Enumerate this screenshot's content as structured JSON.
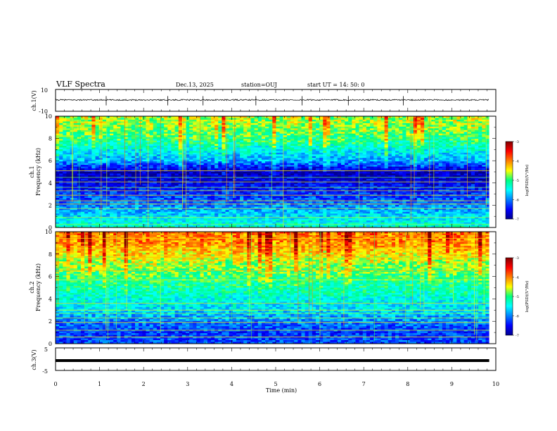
{
  "chart_data": {
    "type": "heatmap",
    "header": {
      "title": "VLF Spectra",
      "date": "Dec.13, 2025",
      "station": "station=OUJ",
      "start": "start UT =  14: 50: 0"
    },
    "time_axis": {
      "label": "Time (min)",
      "range": [
        0,
        10
      ],
      "ticks": [
        "0",
        "1",
        "2",
        "3",
        "4",
        "5",
        "6",
        "7",
        "8",
        "9",
        "10"
      ],
      "data_extent_min": 9.85
    },
    "ch1_waveform": {
      "ylabel": "ch.1(V)",
      "yticks": [
        "10",
        "-10"
      ],
      "yrange": [
        -10,
        10
      ],
      "baseline": 0.4,
      "noise_amplitude": 0.6,
      "spike_times_min": [
        1.15,
        2.55,
        3.35,
        4.55,
        5.6,
        6.65,
        7.9
      ]
    },
    "ch1_spectrogram": {
      "ylabel_channel": "ch.1",
      "ylabel": "Frequency (kHz)",
      "yticks": [
        "0",
        "2",
        "4",
        "6",
        "8",
        "10"
      ],
      "yrange_khz": [
        0,
        10
      ],
      "colorbar": {
        "label": "log(PSD)(V²/Hz)",
        "ticks": [
          "-3",
          "-4",
          "-5",
          "-6",
          "-7"
        ],
        "range": [
          -7,
          -3
        ]
      },
      "levels_by_khz": [
        -5.3,
        -5.6,
        -6.0,
        -6.3,
        -6.6,
        -6.8,
        -5.9,
        -5.5,
        -5.1,
        -4.9,
        -4.8
      ],
      "line_khz": [
        0.3,
        0.9,
        1.7,
        2.1,
        2.4,
        2.9,
        3.3,
        3.6,
        4.1,
        4.5,
        5.1
      ]
    },
    "ch2_spectrogram": {
      "ylabel_channel": "ch.2",
      "ylabel": "Frequency (kHz)",
      "yticks": [
        "0",
        "2",
        "4",
        "6",
        "8",
        "10"
      ],
      "yrange_khz": [
        0,
        10
      ],
      "colorbar": {
        "label": "log(PSD)(V²/Hz)",
        "ticks": [
          "-3",
          "-4",
          "-5",
          "-6",
          "-7"
        ],
        "range": [
          -7,
          -3
        ]
      },
      "levels_by_khz": [
        -6.2,
        -6.3,
        -6.0,
        -5.6,
        -5.4,
        -5.2,
        -5.0,
        -4.8,
        -4.5,
        -4.2,
        -4.1
      ],
      "line_khz": [
        0.6,
        1.2,
        1.9,
        2.3,
        2.7,
        3.0,
        3.6,
        5.7,
        6.5,
        7.7,
        8.5,
        9.4
      ]
    },
    "ch3_waveform": {
      "ylabel": "ch.3(V)",
      "yticks": [
        "5",
        "-5"
      ],
      "yrange": [
        -5,
        5
      ],
      "baseline": 0
    }
  }
}
